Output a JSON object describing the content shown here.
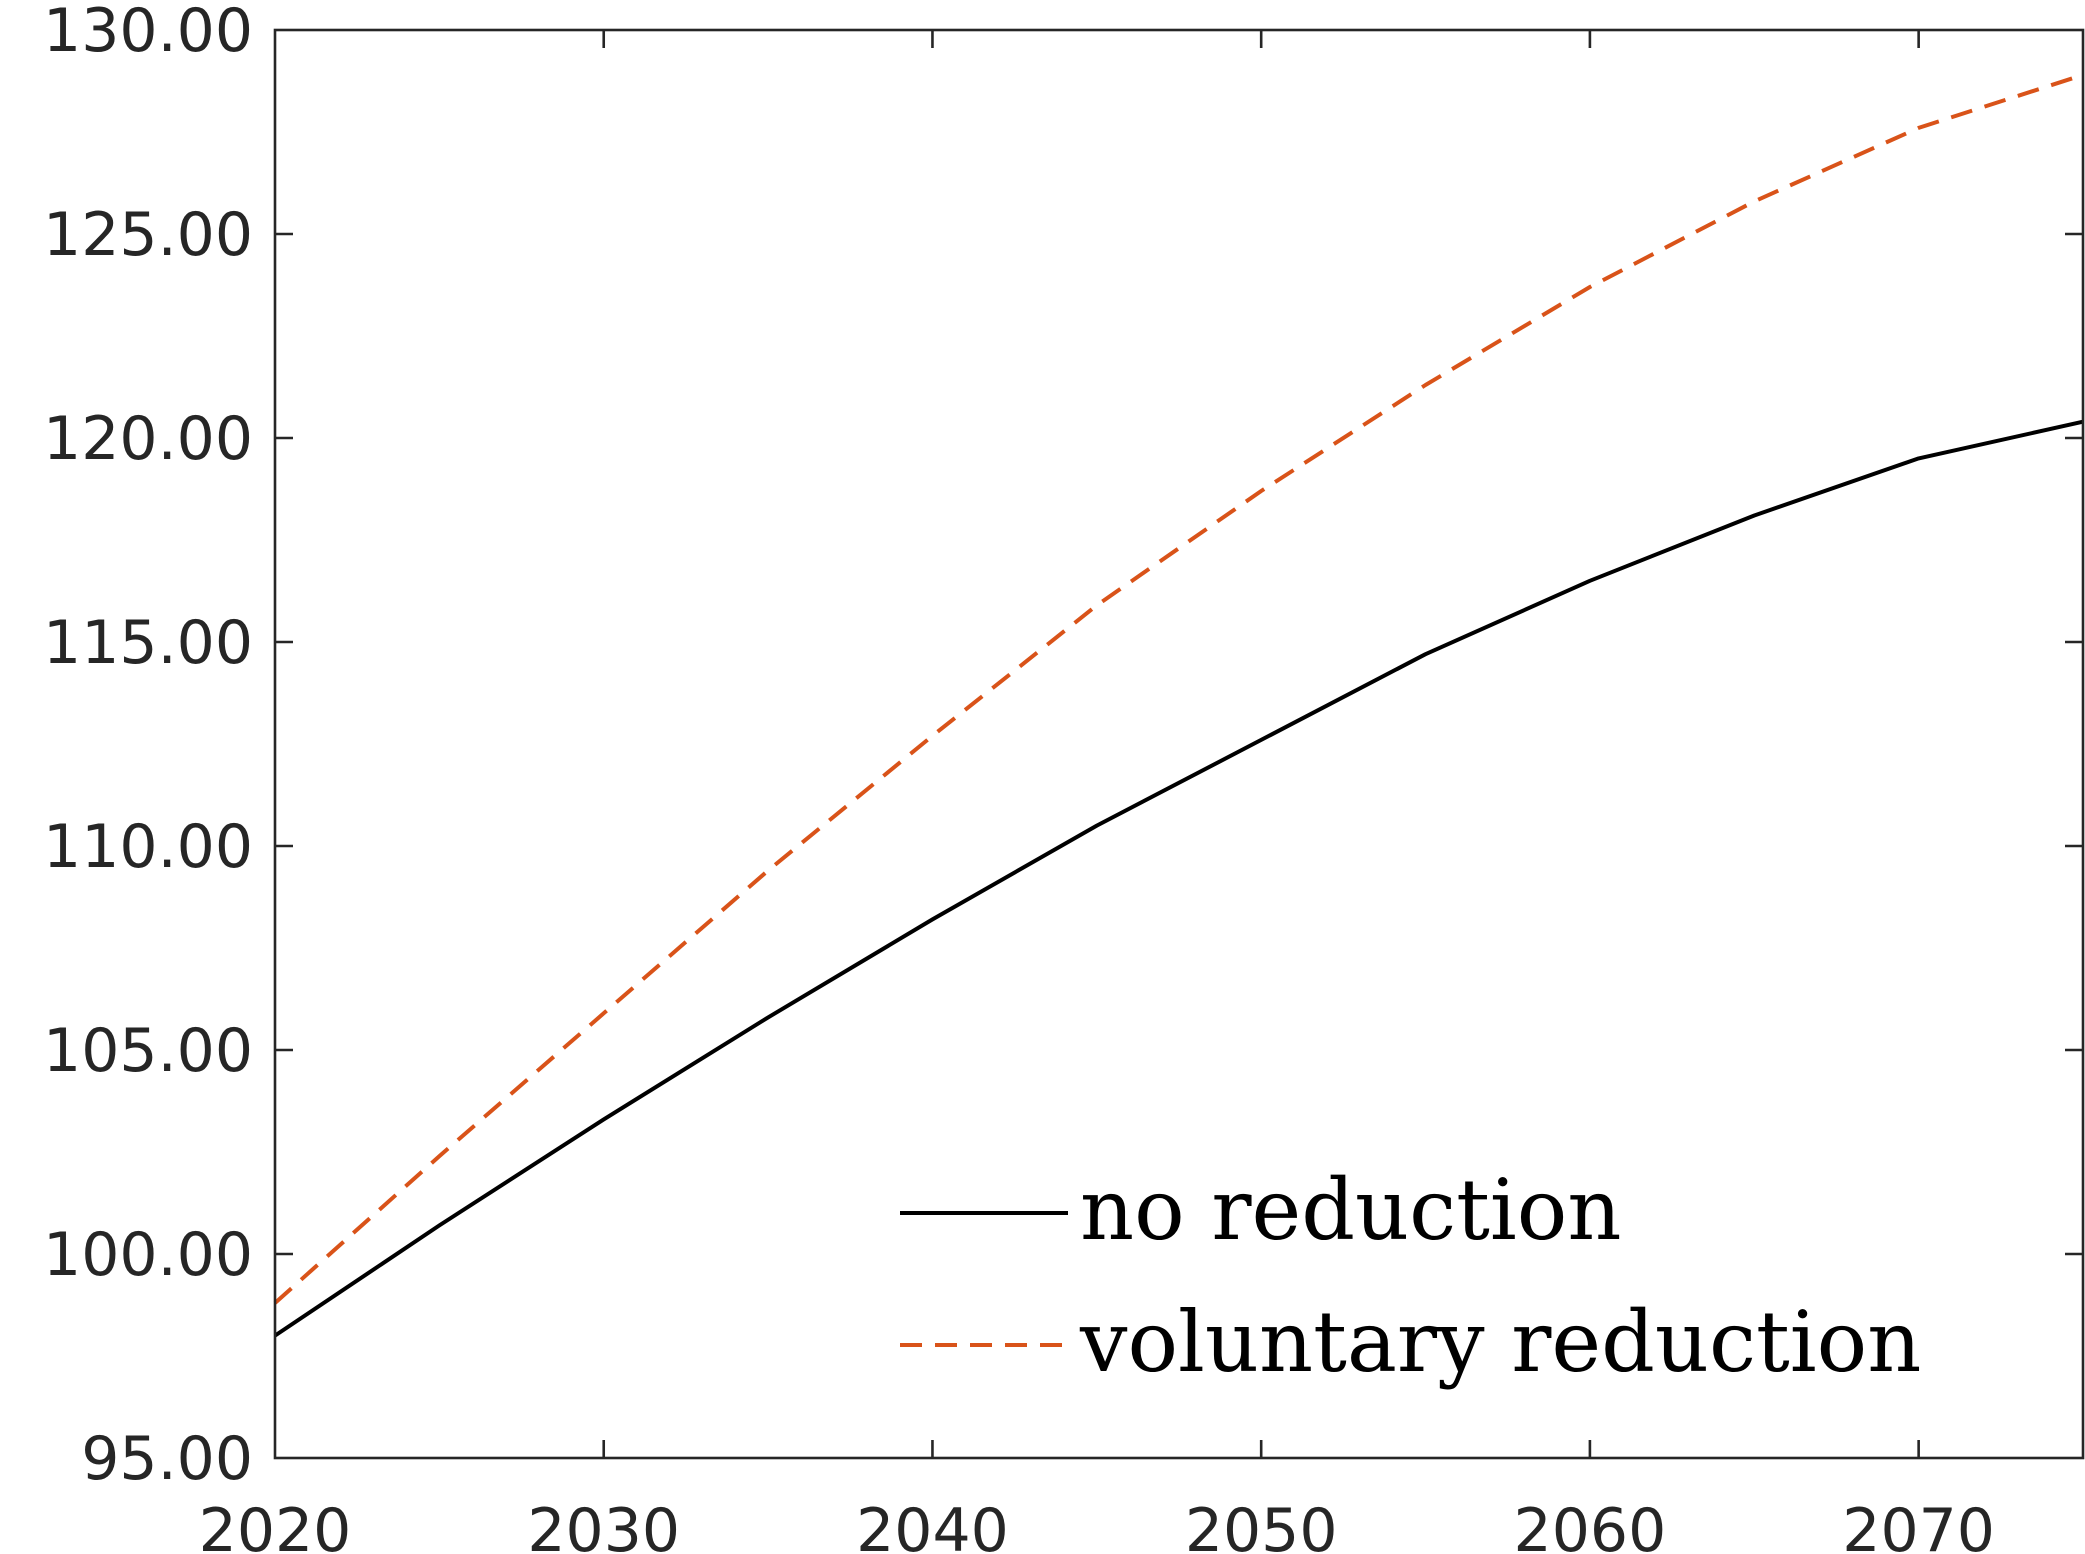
{
  "chart_data": {
    "type": "line",
    "title": "",
    "xlabel": "",
    "ylabel": "",
    "xlim": [
      2020,
      2075
    ],
    "ylim": [
      95,
      130
    ],
    "xticks": [
      2020,
      2030,
      2040,
      2050,
      2060,
      2070
    ],
    "xtick_labels": [
      "2020",
      "2030",
      "2040",
      "2050",
      "2060",
      "2070"
    ],
    "yticks": [
      95,
      100,
      105,
      110,
      115,
      120,
      125,
      130
    ],
    "ytick_labels": [
      "95.00",
      "100.00",
      "105.00",
      "110.00",
      "115.00",
      "120.00",
      "125.00",
      "130.00"
    ],
    "grid": false,
    "legend_position": "bottom-right",
    "x": [
      2020,
      2025,
      2030,
      2035,
      2040,
      2045,
      2050,
      2055,
      2060,
      2065,
      2070,
      2075
    ],
    "series": [
      {
        "name": "no reduction",
        "color": "#000000",
        "style": "solid",
        "values": [
          98.0,
          100.7,
          103.3,
          105.8,
          108.2,
          110.5,
          112.6,
          114.7,
          116.5,
          118.1,
          119.5,
          120.4
        ]
      },
      {
        "name": "voluntary reduction",
        "color": "#D95319",
        "style": "dashed",
        "values": [
          98.8,
          102.4,
          105.9,
          109.4,
          112.7,
          115.9,
          118.7,
          121.3,
          123.7,
          125.8,
          127.6,
          128.9
        ]
      }
    ]
  }
}
